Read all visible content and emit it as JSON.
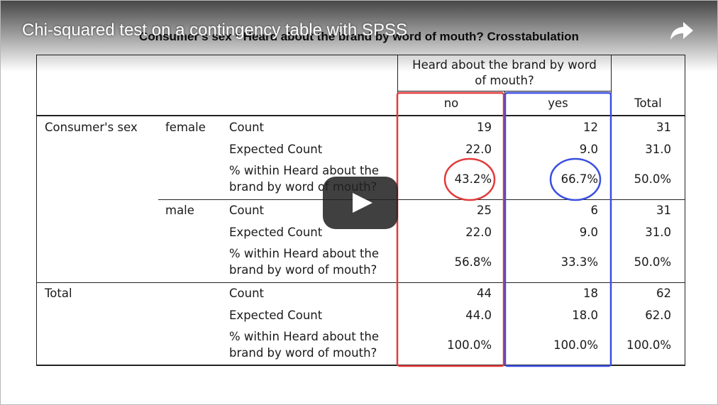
{
  "video": {
    "title": "Chi-squared test on a contingency table with SPSS",
    "share_icon": "share-arrow-icon",
    "play_icon": "play-icon"
  },
  "table": {
    "title": "Consumer's sex * Heard about the brand by word of mouth? Crosstabulation",
    "col_group_header_line1": "Heard about the brand by word",
    "col_group_header_line2": "of mouth?",
    "col_no": "no",
    "col_yes": "yes",
    "col_total": "Total",
    "row_var": "Consumer's sex",
    "female": "female",
    "male": "male",
    "total_row": "Total",
    "stat_count": "Count",
    "stat_expected": "Expected Count",
    "stat_pct_line1": "% within Heard about the",
    "stat_pct_line2": "brand by word of mouth?",
    "female_rows": {
      "count": [
        "19",
        "12",
        "31"
      ],
      "expected": [
        "22.0",
        "9.0",
        "31.0"
      ],
      "pct": [
        "43.2%",
        "66.7%",
        "50.0%"
      ]
    },
    "male_rows": {
      "count": [
        "25",
        "6",
        "31"
      ],
      "expected": [
        "22.0",
        "9.0",
        "31.0"
      ],
      "pct": [
        "56.8%",
        "33.3%",
        "50.0%"
      ]
    },
    "total_rows": {
      "count": [
        "44",
        "18",
        "62"
      ],
      "expected": [
        "44.0",
        "18.0",
        "62.0"
      ],
      "pct": [
        "100.0%",
        "100.0%",
        "100.0%"
      ]
    }
  },
  "annotations": {
    "no_column_box_color": "#e23b3b",
    "yes_column_box_color": "#3a4fe0"
  }
}
